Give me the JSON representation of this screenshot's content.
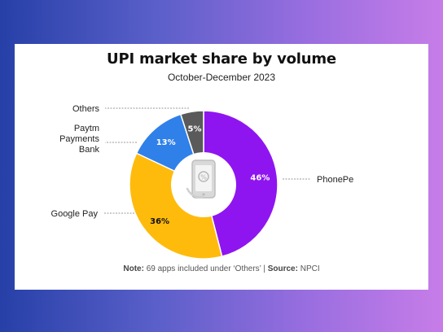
{
  "chart_data": {
    "type": "pie",
    "title": "UPI market share by volume",
    "subtitle": "October-December 2023",
    "slices": [
      {
        "label": "PhonePe",
        "value": 46,
        "display": "46%",
        "color": "#8f15f0"
      },
      {
        "label": "Google Pay",
        "value": 36,
        "display": "36%",
        "color": "#ffbb0c"
      },
      {
        "label": "Paytm Payments Bank",
        "value": 13,
        "display": "13%",
        "color": "#2f80e8"
      },
      {
        "label": "Others",
        "value": 5,
        "display": "5%",
        "color": "#5a5a5a"
      }
    ],
    "legend": "callout labels beside slices",
    "center_icon": "phone-icon"
  },
  "footnote": {
    "note_label": "Note:",
    "note_text": "69 apps included under ‘Others’",
    "separator": "|",
    "source_label": "Source:",
    "source_text": "NPCI"
  }
}
